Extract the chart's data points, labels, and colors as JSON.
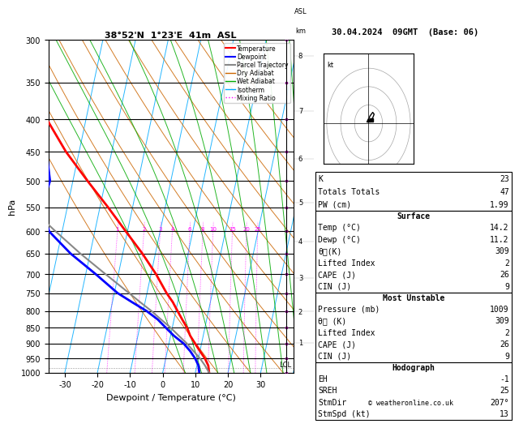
{
  "title_left": "38°52'N  1°23'E  41m  ASL",
  "title_right": "30.04.2024  09GMT  (Base: 06)",
  "xlabel": "Dewpoint / Temperature (°C)",
  "ylabel_left": "hPa",
  "plevels": [
    300,
    350,
    400,
    450,
    500,
    550,
    600,
    650,
    700,
    750,
    800,
    850,
    900,
    950,
    1000
  ],
  "xlim": [
    -35,
    40
  ],
  "bg_color": "#ffffff",
  "plot_bg": "#ffffff",
  "temp_color": "#ff0000",
  "dewp_color": "#0000ff",
  "parcel_color": "#888888",
  "dry_adiabat_color": "#cc6600",
  "wet_adiabat_color": "#00aa00",
  "isotherm_color": "#00aaff",
  "mixing_ratio_color": "#ff00ff",
  "isotherms": [
    -40,
    -30,
    -20,
    -10,
    0,
    10,
    20,
    30,
    40
  ],
  "dry_adiabats_theta": [
    280,
    290,
    300,
    310,
    320,
    330,
    340,
    350,
    360,
    370,
    380
  ],
  "wet_adiabats_theta": [
    280,
    285,
    290,
    295,
    300,
    305,
    310,
    315,
    320,
    325,
    330
  ],
  "mixing_ratios": [
    1,
    2,
    3,
    4,
    6,
    8,
    10,
    15,
    20,
    25
  ],
  "temperature_profile": {
    "pressure": [
      1000,
      975,
      950,
      925,
      900,
      875,
      850,
      825,
      800,
      775,
      750,
      700,
      650,
      600,
      550,
      500,
      450,
      400,
      350,
      300
    ],
    "temp_c": [
      14.2,
      13.5,
      12.0,
      10.0,
      8.0,
      6.0,
      4.5,
      2.5,
      0.5,
      -1.5,
      -4.0,
      -8.5,
      -14.0,
      -20.5,
      -27.5,
      -35.5,
      -44.0,
      -52.0,
      -58.5,
      -58.0
    ]
  },
  "dewpoint_profile": {
    "pressure": [
      1000,
      975,
      950,
      925,
      900,
      875,
      850,
      825,
      800,
      775,
      750,
      700,
      650,
      600,
      550,
      500,
      450,
      400,
      350,
      300
    ],
    "dewp_c": [
      11.2,
      10.5,
      9.0,
      7.0,
      4.5,
      1.0,
      -2.0,
      -5.0,
      -9.0,
      -14.0,
      -19.0,
      -27.0,
      -36.0,
      -44.0,
      -48.0,
      -47.0,
      -50.0,
      -58.0,
      -65.0,
      -72.0
    ]
  },
  "parcel_profile": {
    "pressure": [
      1000,
      975,
      950,
      925,
      900,
      875,
      850,
      825,
      800,
      775,
      750,
      700,
      650,
      600,
      550,
      500,
      450,
      400,
      350,
      300
    ],
    "temp_c": [
      14.2,
      12.5,
      10.5,
      8.0,
      5.5,
      2.5,
      -0.5,
      -4.0,
      -7.5,
      -11.5,
      -15.5,
      -24.0,
      -33.0,
      -42.0,
      -51.5,
      -55.0,
      -57.0,
      -59.0,
      -61.0,
      -62.0
    ]
  },
  "stats": {
    "K": 23,
    "Totals_Totals": 47,
    "PW_cm": 1.99,
    "Surface_Temp": 14.2,
    "Surface_Dewp": 11.2,
    "Surface_ThetaE": 309,
    "Surface_LI": 2,
    "Surface_CAPE": 26,
    "Surface_CIN": 9,
    "MU_Pressure": 1009,
    "MU_ThetaE": 309,
    "MU_LI": 2,
    "MU_CAPE": 26,
    "MU_CIN": 9,
    "EH": -1,
    "SREH": 25,
    "StmDir": 207,
    "StmSpd": 13
  },
  "lcl_pressure": 983,
  "km_labels": [
    1,
    2,
    3,
    4,
    5,
    6,
    7,
    8
  ],
  "km_pressures": [
    898,
    802,
    710,
    622,
    540,
    462,
    388,
    318
  ],
  "hodograph_winds_u": [
    0,
    1,
    3,
    4,
    3,
    2
  ],
  "hodograph_winds_v": [
    2,
    4,
    6,
    5,
    3,
    2
  ],
  "skew_factor": 18.0
}
